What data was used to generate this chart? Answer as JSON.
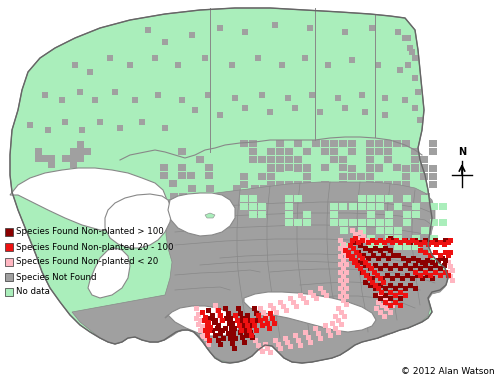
{
  "background_color": "#ffffff",
  "legend_items": [
    {
      "label": "Species Found Non-planted > 100",
      "color": "#8B0000"
    },
    {
      "label": "Species Found Non-planted 20 - 100",
      "color": "#EE1111"
    },
    {
      "label": "Species Found Non-planted < 20",
      "color": "#FFB6C1"
    },
    {
      "label": "Species Not Found",
      "color": "#A0A0A0"
    },
    {
      "label": "No data",
      "color": "#AAEEBB"
    }
  ],
  "copyright": "© 2012 Alan Watson",
  "nodata_color": "#AAEEBB",
  "not_found_color": "#A0A0A0",
  "found_gt100_color": "#8B0000",
  "found_20_100_color": "#EE1111",
  "found_lt20_color": "#FFB6C1",
  "border_color": "#888888",
  "line_color": "#888888"
}
